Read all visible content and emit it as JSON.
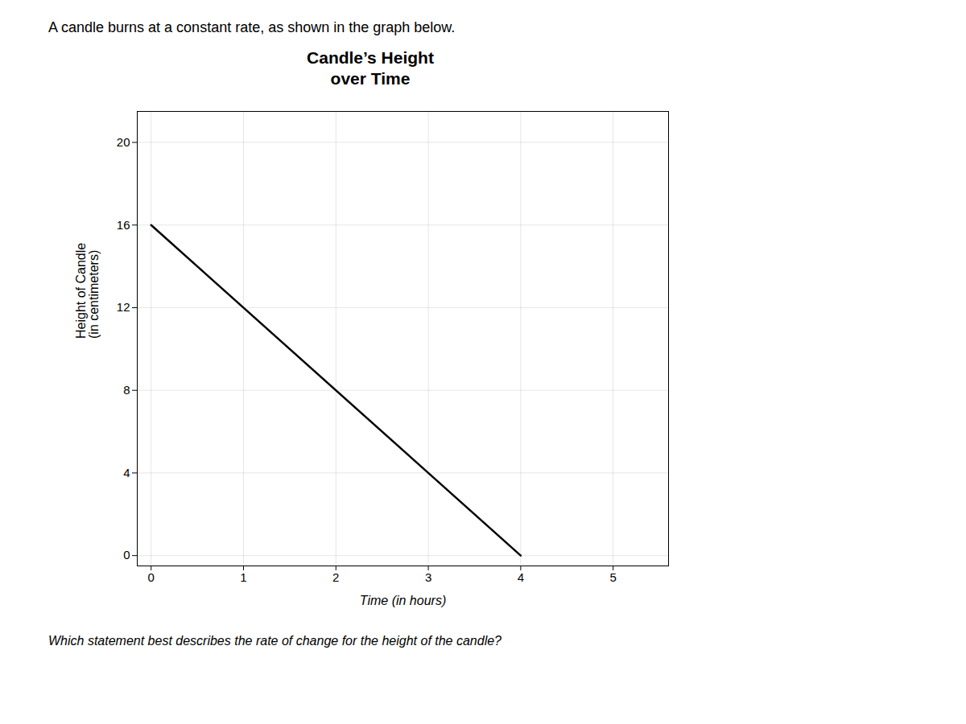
{
  "chart_data": {
    "type": "line",
    "subtitle": "A candle burns at a constant rate, as shown in the graph below.",
    "title": "Candle’s Height\nover Time",
    "xlabel": "Time (in hours)",
    "ylabel": "Height of Candle\n(in centimeters)",
    "caption": "Which statement best describes the rate of change for the height of the candle?",
    "x": [
      0,
      4
    ],
    "values": [
      16,
      0
    ],
    "color": "#000000",
    "xlim": [
      -0.15,
      5.6
    ],
    "ylim": [
      -0.5,
      21.5
    ],
    "xticks": [
      0,
      1,
      2,
      3,
      4,
      5
    ],
    "yticks": [
      0,
      4,
      8,
      12,
      16,
      20
    ],
    "grid": true
  }
}
